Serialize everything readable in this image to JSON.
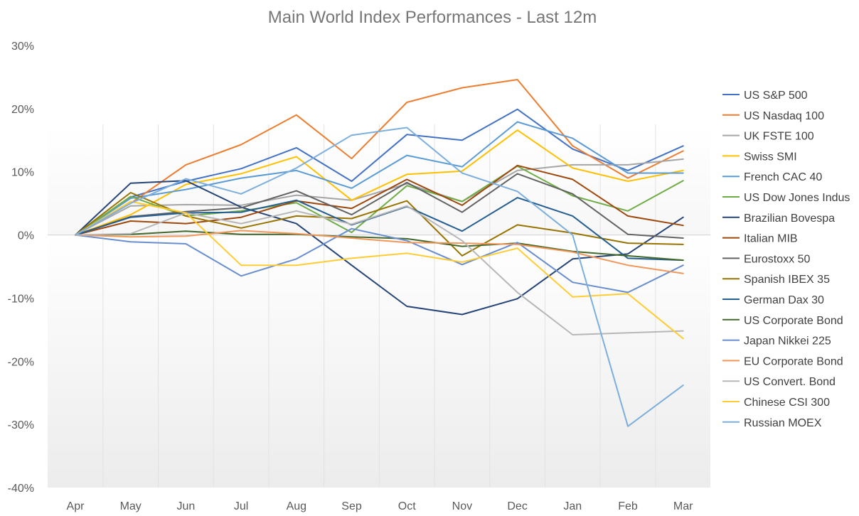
{
  "chart_data": {
    "type": "line",
    "title": "Main World Index Performances - Last 12m",
    "xlabel": "",
    "ylabel": "",
    "categories": [
      "Apr",
      "May",
      "Jun",
      "Jul",
      "Aug",
      "Sep",
      "Oct",
      "Nov",
      "Dec",
      "Jan",
      "Feb",
      "Mar"
    ],
    "ylim": [
      -40,
      30
    ],
    "yticks": [
      30,
      20,
      10,
      0,
      -10,
      -20,
      -30,
      -40
    ],
    "ytick_labels": [
      "30%",
      "20%",
      "10%",
      "0%",
      "-10%",
      "-20%",
      "-30%",
      "-40%"
    ],
    "grid": "vertical",
    "legend": "right",
    "series": [
      {
        "name": "US S&P 500",
        "color": "#4472C4",
        "values": [
          0,
          6.0,
          8.5,
          10.5,
          13.8,
          8.5,
          15.9,
          15.0,
          19.9,
          13.6,
          10.2,
          14.1
        ]
      },
      {
        "name": "US Nasdaq 100",
        "color": "#ED7D31",
        "values": [
          0,
          5.0,
          11.1,
          14.3,
          19.0,
          12.1,
          21.0,
          23.3,
          24.6,
          14.1,
          9.0,
          13.3
        ]
      },
      {
        "name": "UK FSTE 100",
        "color": "#A5A5A5",
        "values": [
          0,
          4.6,
          4.8,
          4.7,
          6.3,
          5.5,
          8.1,
          5.3,
          10.2,
          11.1,
          11.1,
          12.0
        ]
      },
      {
        "name": "Swiss SMI",
        "color": "#FFC000",
        "values": [
          0,
          3.2,
          8.0,
          9.7,
          12.4,
          5.5,
          9.6,
          10.1,
          16.6,
          10.6,
          8.5,
          10.2
        ]
      },
      {
        "name": "French CAC 40",
        "color": "#5B9BD5",
        "values": [
          0,
          5.8,
          7.2,
          9.0,
          10.2,
          7.4,
          12.6,
          10.8,
          17.9,
          15.3,
          9.8,
          9.8
        ]
      },
      {
        "name": "US Dow Jones Indus",
        "color": "#70AD47",
        "values": [
          0,
          6.1,
          3.0,
          3.8,
          5.1,
          0.4,
          7.8,
          5.3,
          10.9,
          6.2,
          3.8,
          8.6
        ]
      },
      {
        "name": "Brazilian Bovespa",
        "color": "#264478",
        "values": [
          0,
          8.2,
          8.6,
          4.4,
          1.8,
          -4.8,
          -11.3,
          -12.6,
          -10.1,
          -3.8,
          -3.0,
          2.8
        ]
      },
      {
        "name": "Italian MIB",
        "color": "#9E480E",
        "values": [
          0,
          2.2,
          1.8,
          2.8,
          5.4,
          4.2,
          8.8,
          4.7,
          11.0,
          8.8,
          3.0,
          1.5
        ]
      },
      {
        "name": "Eurostoxx 50",
        "color": "#636363",
        "values": [
          0,
          2.9,
          3.7,
          4.3,
          7.0,
          3.2,
          8.3,
          3.6,
          9.7,
          6.5,
          0.1,
          -0.5
        ]
      },
      {
        "name": "Spanish IBEX 35",
        "color": "#997300",
        "values": [
          0,
          6.7,
          3.0,
          1.1,
          3.0,
          2.6,
          5.4,
          -3.3,
          1.6,
          0.3,
          -1.3,
          -1.5
        ]
      },
      {
        "name": "German Dax 30",
        "color": "#255E91",
        "values": [
          0,
          2.8,
          3.5,
          3.6,
          5.5,
          1.6,
          4.5,
          0.6,
          5.9,
          3.0,
          -3.7,
          -4.0
        ]
      },
      {
        "name": "US Corporate Bond",
        "color": "#43682B",
        "values": [
          0,
          0.1,
          0.6,
          0.1,
          0.1,
          -0.3,
          -0.6,
          -1.8,
          -1.3,
          -2.6,
          -3.3,
          -4.0
        ]
      },
      {
        "name": "Japan Nikkei 225",
        "color": "#698ED0",
        "values": [
          0,
          -1.1,
          -1.4,
          -6.5,
          -3.8,
          1.0,
          -0.9,
          -4.7,
          -1.2,
          -7.5,
          -9.1,
          -4.8
        ]
      },
      {
        "name": "EU Corporate Bond",
        "color": "#F1975A",
        "values": [
          0,
          -0.3,
          -0.2,
          0.7,
          0.2,
          -0.5,
          -1.2,
          -1.3,
          -1.5,
          -2.7,
          -4.8,
          -6.1
        ]
      },
      {
        "name": "US Convert. Bond",
        "color": "#B7B7B7",
        "values": [
          0,
          0.2,
          3.5,
          1.8,
          3.8,
          1.7,
          4.6,
          -0.9,
          -9.1,
          -15.8,
          -15.5,
          -15.2
        ]
      },
      {
        "name": "Chinese CSI 300",
        "color": "#FFCD33",
        "values": [
          0,
          5.3,
          3.5,
          -4.8,
          -4.8,
          -3.7,
          -2.9,
          -4.3,
          -2.1,
          -9.8,
          -9.3,
          -16.4
        ]
      },
      {
        "name": "Russian MOEX",
        "color": "#7CAFDD",
        "values": [
          0,
          5.0,
          8.9,
          6.5,
          10.6,
          15.8,
          17.0,
          9.8,
          6.9,
          0.0,
          -30.3,
          -23.8
        ]
      }
    ]
  }
}
